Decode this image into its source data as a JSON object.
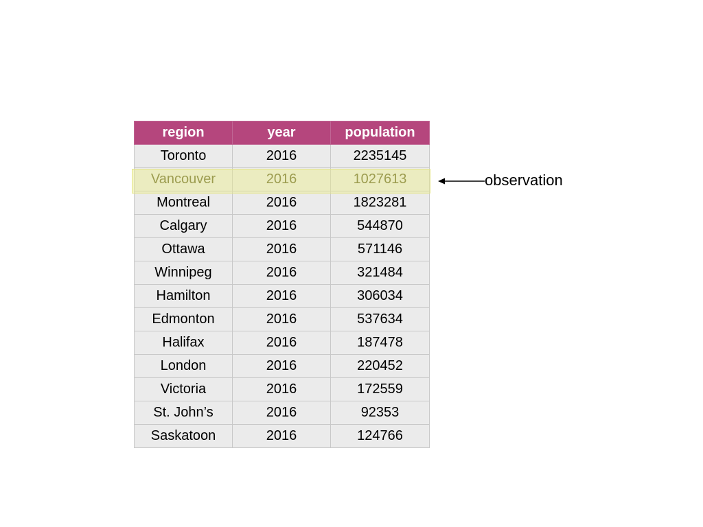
{
  "table": {
    "headers": [
      "region",
      "year",
      "population"
    ],
    "rows": [
      [
        "Toronto",
        "2016",
        "2235145"
      ],
      [
        "Vancouver",
        "2016",
        "1027613"
      ],
      [
        "Montreal",
        "2016",
        "1823281"
      ],
      [
        "Calgary",
        "2016",
        "544870"
      ],
      [
        "Ottawa",
        "2016",
        "571146"
      ],
      [
        "Winnipeg",
        "2016",
        "321484"
      ],
      [
        "Hamilton",
        "2016",
        "306034"
      ],
      [
        "Edmonton",
        "2016",
        "537634"
      ],
      [
        "Halifax",
        "2016",
        "187478"
      ],
      [
        "London",
        "2016",
        "220452"
      ],
      [
        "Victoria",
        "2016",
        "172559"
      ],
      [
        "St. John’s",
        "2016",
        "92353"
      ],
      [
        "Saskatoon",
        "2016",
        "124766"
      ]
    ],
    "highlighted_row": 1
  },
  "annotation": {
    "label": "observation"
  },
  "colors": {
    "header_bg": "#b5467d",
    "header_text": "#ffffff",
    "cell_bg": "#ebebeb",
    "highlight": "#ecee8c",
    "highlight_text": "#5b5a1e"
  }
}
